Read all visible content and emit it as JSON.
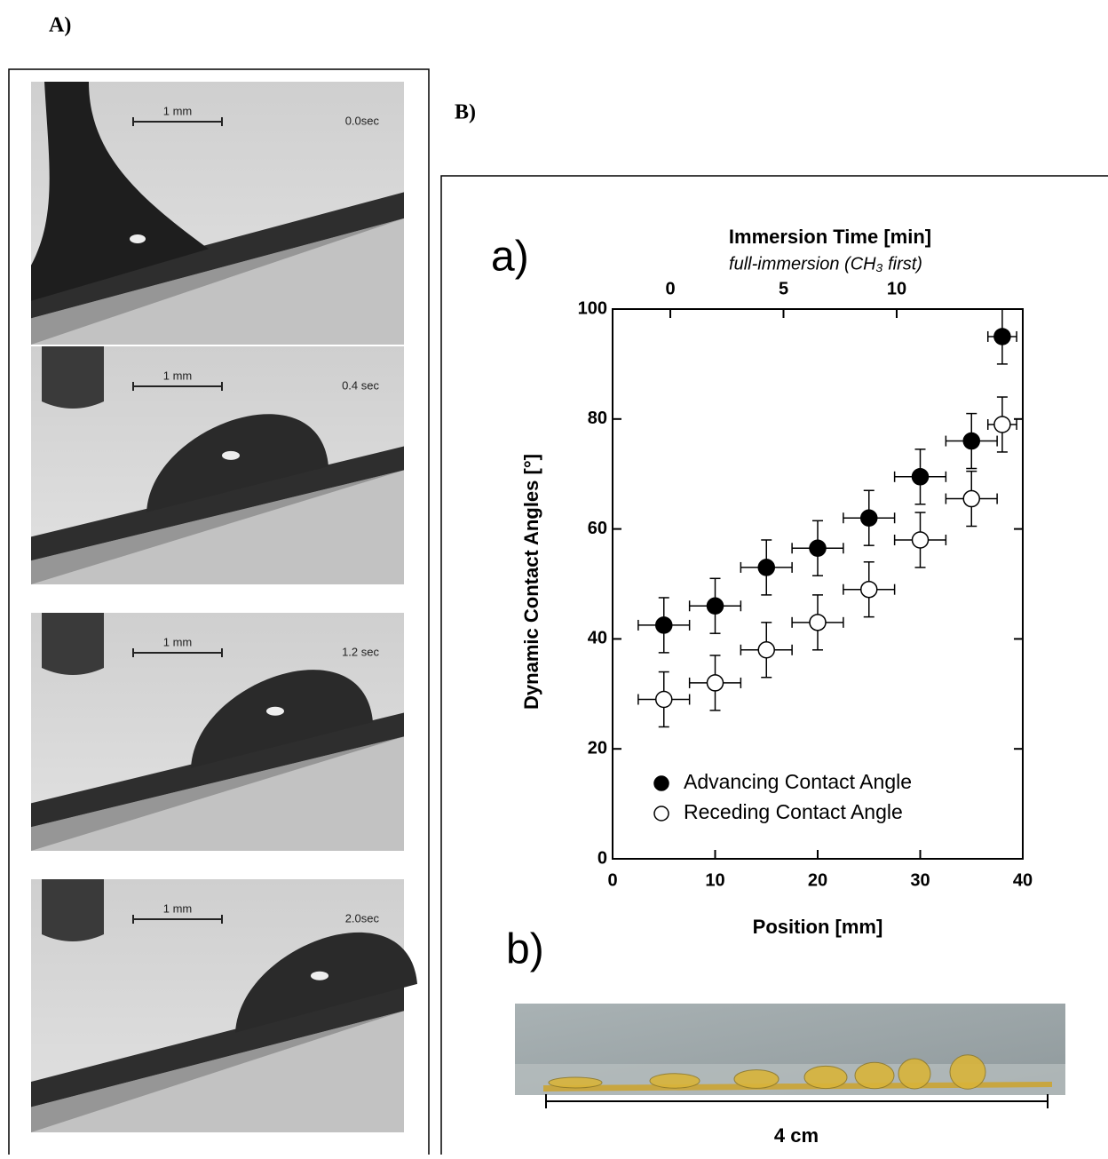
{
  "panel_labels": {
    "a_upper": "A)",
    "b_upper": "B)",
    "a_lower": "a)",
    "b_lower": "b)"
  },
  "photos_a": [
    {
      "scale": "1 mm",
      "time": "0.0sec"
    },
    {
      "scale": "1 mm",
      "time": "0.4 sec"
    },
    {
      "scale": "1 mm",
      "time": "1.2 sec"
    },
    {
      "scale": "1 mm",
      "time": "2.0sec"
    }
  ],
  "photo_b": {
    "scale": "4 cm"
  },
  "chart_data": {
    "type": "scatter",
    "title": "Immersion Time [min]",
    "subtitle": "full-immersion (CH₃ first)",
    "x_label": "Position [mm]",
    "y_label": "Dynamic Contact Angles [°]",
    "x": [
      5,
      10,
      15,
      20,
      25,
      30,
      35,
      38
    ],
    "xerr": [
      2.5,
      2.5,
      2.5,
      2.5,
      2.5,
      2.5,
      2.5,
      1.4
    ],
    "series": [
      {
        "name": "Advancing Contact Angle",
        "color": "#000000",
        "values": [
          42.5,
          46,
          53,
          56.5,
          62,
          69.5,
          76,
          95
        ],
        "yerr": [
          5,
          5,
          5,
          5,
          5,
          5,
          5,
          5
        ]
      },
      {
        "name": "Receding Contact Angle",
        "color": "#ffffff",
        "values": [
          29,
          32,
          38,
          43,
          49,
          58,
          65.5,
          79
        ],
        "yerr": [
          5,
          5,
          5,
          5,
          5,
          5,
          5,
          5
        ]
      }
    ],
    "xlim": [
      0,
      40
    ],
    "xticks": [
      0,
      10,
      20,
      30,
      40
    ],
    "x2lim": [
      -2.55,
      15.57
    ],
    "x2ticks": [
      0,
      5,
      10
    ],
    "ylim": [
      0,
      100
    ],
    "yticks": [
      0,
      20,
      40,
      60,
      80,
      100
    ],
    "legend": "lower-left"
  }
}
